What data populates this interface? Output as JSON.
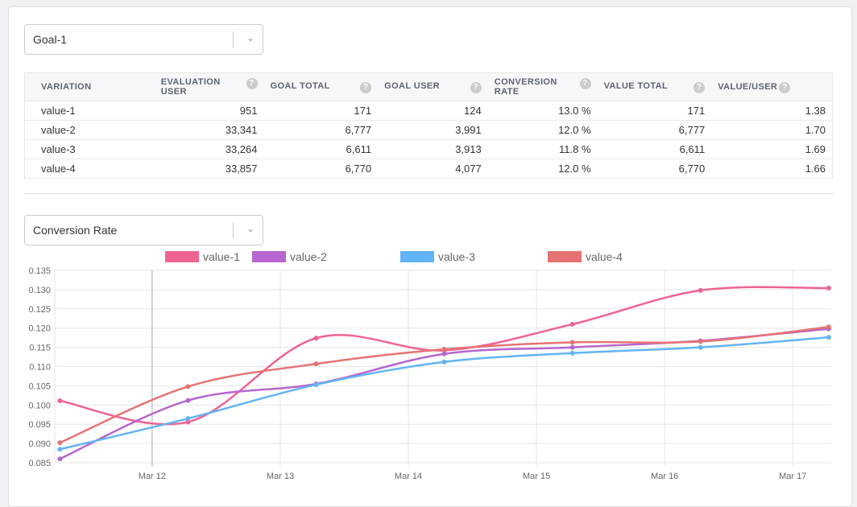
{
  "goal_select": {
    "value": "Goal-1"
  },
  "metric_select": {
    "value": "Conversion Rate"
  },
  "table": {
    "headers": [
      "VARIATION",
      "EVALUATION USER",
      "GOAL TOTAL",
      "GOAL USER",
      "CONVERSION RATE",
      "VALUE TOTAL",
      "VALUE/USER"
    ],
    "help_icon": "?",
    "rows": [
      [
        "value-1",
        "951",
        "171",
        "124",
        "13.0 %",
        "171",
        "1.38"
      ],
      [
        "value-2",
        "33,341",
        "6,777",
        "3,991",
        "12.0 %",
        "6,777",
        "1.70"
      ],
      [
        "value-3",
        "33,264",
        "6,611",
        "3,913",
        "11.8 %",
        "6,611",
        "1.69"
      ],
      [
        "value-4",
        "33,857",
        "6,770",
        "4,077",
        "12.0 %",
        "6,770",
        "1.66"
      ]
    ]
  },
  "chart_data": {
    "type": "line",
    "title": "",
    "xlabel": "",
    "ylabel": "",
    "ylim": [
      0.085,
      0.135
    ],
    "yticks": [
      "0.135",
      "0.130",
      "0.125",
      "0.120",
      "0.115",
      "0.110",
      "0.105",
      "0.100",
      "0.095",
      "0.090",
      "0.085"
    ],
    "xlim": [
      11.24,
      17.3
    ],
    "xticks": [
      {
        "label": "Mar 12",
        "day": 12
      },
      {
        "label": "Mar 13",
        "day": 13
      },
      {
        "label": "Mar 14",
        "day": 14
      },
      {
        "label": "Mar 15",
        "day": 15
      },
      {
        "label": "Mar 16",
        "day": 16
      },
      {
        "label": "Mar 17",
        "day": 17
      }
    ],
    "x": [
      11.28,
      12.28,
      13.28,
      14.28,
      15.28,
      16.28,
      17.28
    ],
    "legend_position": "top",
    "grid": true,
    "series": [
      {
        "name": "value-1",
        "color": "#ef6393",
        "values": [
          0.1011,
          0.0956,
          0.1174,
          0.1142,
          0.121,
          0.1298,
          0.1304
        ]
      },
      {
        "name": "value-2",
        "color": "#b766cf",
        "values": [
          0.086,
          0.1012,
          0.1055,
          0.1133,
          0.115,
          0.1167,
          0.1198
        ]
      },
      {
        "name": "value-3",
        "color": "#63b4f5",
        "values": [
          0.0885,
          0.0965,
          0.1053,
          0.1112,
          0.1135,
          0.115,
          0.1176
        ]
      },
      {
        "name": "value-4",
        "color": "#e57373",
        "values": [
          0.0902,
          0.1048,
          0.1107,
          0.1145,
          0.1163,
          0.1165,
          0.1203
        ]
      }
    ]
  }
}
